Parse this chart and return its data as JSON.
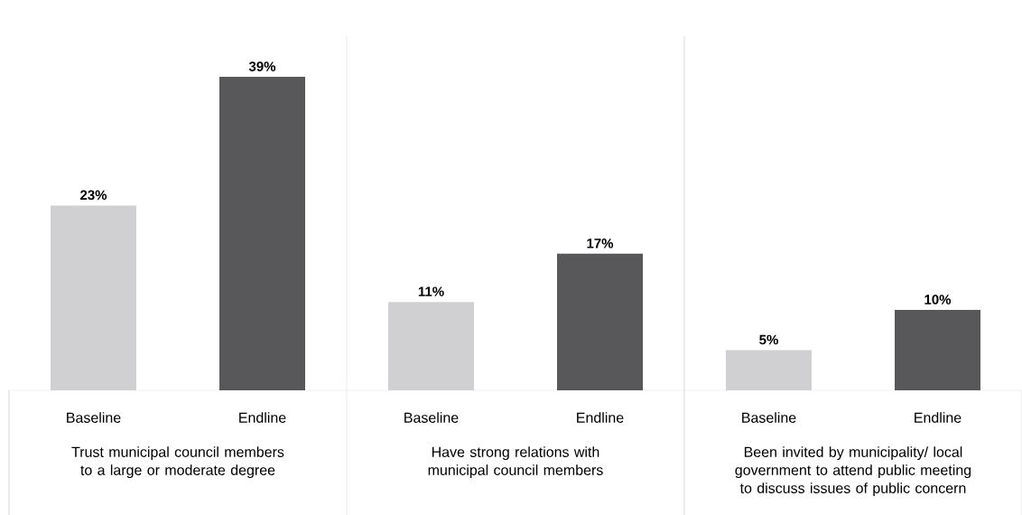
{
  "chart_data": {
    "type": "bar",
    "categories": [
      "Trust municipal council members to a large or moderate degree",
      "Have strong relations with municipal council members",
      "Been invited by municipality/ local government to attend public meeting to discuss issues of public concern"
    ],
    "series": [
      {
        "name": "Baseline",
        "color": "#d0d0d2",
        "values": [
          23,
          11,
          5
        ],
        "value_labels": [
          "23%",
          "11%",
          "5%"
        ]
      },
      {
        "name": "Endline",
        "color": "#58585a",
        "values": [
          39,
          17,
          10
        ],
        "value_labels": [
          "39%",
          "17%",
          "10%"
        ]
      }
    ]
  }
}
